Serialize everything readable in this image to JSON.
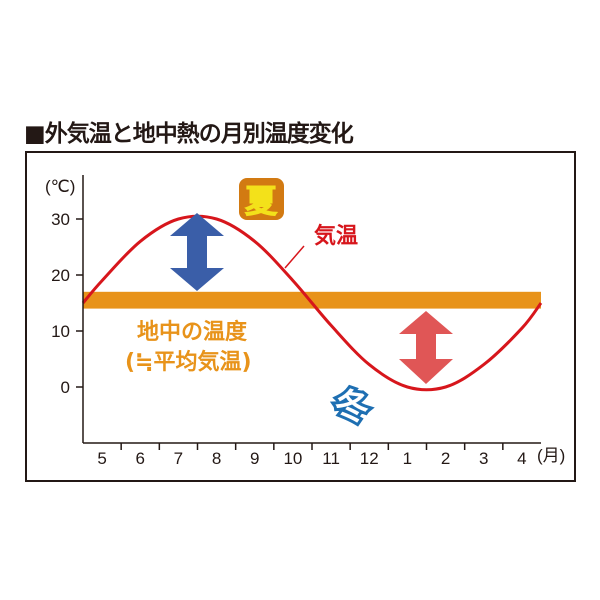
{
  "title": "■外気温と地中熱の月別温度変化",
  "chart_data": {
    "type": "line",
    "xlabel": "(月)",
    "ylabel": "(℃)",
    "categories": [
      "5",
      "6",
      "7",
      "8",
      "9",
      "10",
      "11",
      "12",
      "1",
      "2",
      "3",
      "4"
    ],
    "yticks": [
      0,
      10,
      20,
      30
    ],
    "ylim": [
      -10,
      34
    ],
    "grid": false,
    "series": [
      {
        "name": "気温",
        "values": [
          19,
          26,
          30,
          30,
          26,
          19,
          11,
          4,
          0,
          0,
          4,
          10.5
        ],
        "color": "#d7161c"
      }
    ],
    "band": {
      "label": "地中の温度",
      "sublabel": "(≒平均気温)",
      "range": [
        14,
        17
      ],
      "color": "#e8931a"
    },
    "annotations": {
      "summer": {
        "text": "夏",
        "color": "#f3e11a",
        "outline": "#d27a12"
      },
      "winter": {
        "text": "冬",
        "color": "#ffffff",
        "outline": "#1e6fb2"
      },
      "summer_arrow_color": "#3a5ea8",
      "winter_arrow_color": "#e05656"
    }
  }
}
